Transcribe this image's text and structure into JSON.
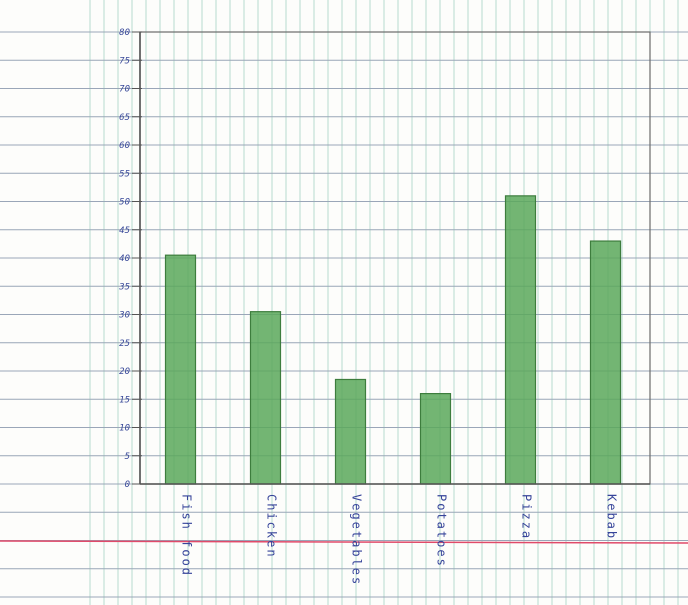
{
  "chart_data": {
    "type": "bar",
    "categories": [
      "Fish food",
      "Chicken",
      "Vegetables",
      "Potatoes",
      "Pizza",
      "Kebab"
    ],
    "values": [
      40.5,
      30.5,
      18.5,
      16,
      51,
      43
    ],
    "ylim": [
      0,
      80
    ],
    "yticks": [
      0,
      5,
      10,
      15,
      20,
      25,
      30,
      35,
      40,
      45,
      50,
      55,
      60,
      65,
      70,
      75,
      80
    ],
    "title": "",
    "xlabel": "",
    "ylabel": "",
    "grid": true,
    "bar_color": "#5aa85a"
  },
  "colors": {
    "paper": "#fdfdfb",
    "horizontal_rule": "#9aa6b8",
    "vertical_rule": "#b8dccf",
    "margin_line": "#e04a6a",
    "ink": "#36449a"
  }
}
